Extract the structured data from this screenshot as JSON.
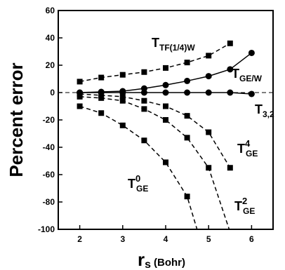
{
  "chart_data": {
    "type": "line",
    "title": "",
    "ylabel": "Percent error",
    "xlabel_main": "r",
    "xlabel_sub": "s",
    "xlabel_unit": "(Bohr)",
    "xlim": [
      1.5,
      6.5
    ],
    "ylim": [
      -100,
      60
    ],
    "xticks": [
      2,
      3,
      4,
      5,
      6
    ],
    "yticks": [
      -100,
      -80,
      -60,
      -40,
      -20,
      0,
      20,
      40,
      60
    ],
    "zero_line": "dashed",
    "grid": false,
    "series": [
      {
        "name": "T_TF(1/4)W",
        "marker": "square",
        "line": "dashed",
        "x": [
          2,
          2.5,
          3,
          3.5,
          4,
          4.5,
          5,
          5.5
        ],
        "y": [
          8,
          11,
          13,
          15,
          18,
          22,
          27,
          36
        ],
        "label": {
          "base": "T",
          "sub": "TF(1/4)W",
          "sup": ""
        }
      },
      {
        "name": "T_GE/W",
        "marker": "circle",
        "line": "solid",
        "x": [
          2,
          2.5,
          3,
          3.5,
          4,
          4.5,
          5,
          5.5,
          6
        ],
        "y": [
          0,
          0.5,
          1,
          3,
          5.5,
          8.5,
          12,
          17,
          29
        ],
        "label": {
          "base": "T",
          "sub": "GE/W",
          "sup": ""
        }
      },
      {
        "name": "T_3,2",
        "marker": "circle",
        "line": "solid",
        "x": [
          2,
          2.5,
          3,
          3.5,
          4,
          4.5,
          5,
          5.5,
          6
        ],
        "y": [
          0,
          0,
          0,
          0,
          0,
          0,
          0,
          0,
          -1
        ],
        "label": {
          "base": "T",
          "sub": "3,2",
          "sup": ""
        }
      },
      {
        "name": "T_GE^4",
        "marker": "square",
        "line": "dashed",
        "x": [
          2,
          2.5,
          3,
          3.5,
          4,
          4.5,
          5,
          5.5
        ],
        "y": [
          -1,
          -2,
          -3,
          -6,
          -10,
          -17,
          -29,
          -55
        ],
        "label": {
          "base": "T",
          "sub": "GE",
          "sup": "4"
        }
      },
      {
        "name": "T_GE^2",
        "marker": "square",
        "line": "dashed",
        "x": [
          2,
          2.5,
          3,
          3.5,
          4,
          4.5,
          5,
          5.5
        ],
        "y": [
          -3,
          -4,
          -6,
          -12,
          -20,
          -33,
          -55,
          -102
        ],
        "label": {
          "base": "T",
          "sub": "GE",
          "sup": "2"
        }
      },
      {
        "name": "T_GE^0",
        "marker": "square",
        "line": "dashed",
        "x": [
          2,
          2.5,
          3,
          3.5,
          4,
          4.5,
          4.75
        ],
        "y": [
          -10,
          -15,
          -24,
          -35,
          -51,
          -76,
          -102
        ],
        "label": {
          "base": "T",
          "sub": "GE",
          "sup": "0"
        }
      }
    ]
  }
}
